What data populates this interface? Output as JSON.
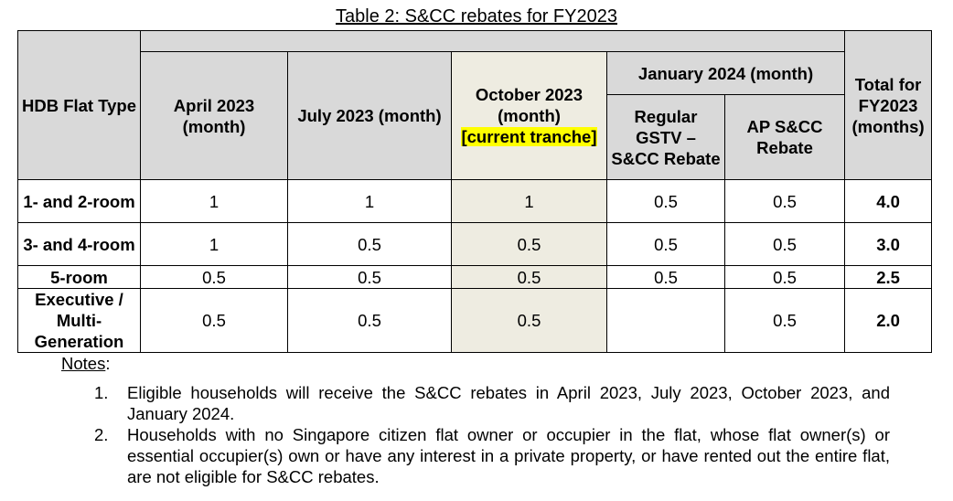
{
  "title": "Table 2: S&CC rebates for FY2023",
  "headers": {
    "flat_type": "HDB Flat Type",
    "april": "April 2023 (month)",
    "july": "July 2023 (month)",
    "october_line1": "October 2023 (month)",
    "october_highlight": "[current tranche]",
    "january_group": "January 2024 (month)",
    "january_regular": "Regular GSTV – S&CC Rebate",
    "january_ap": "AP S&CC Rebate",
    "total": "Total for FY2023 (months)"
  },
  "rows": [
    {
      "flat_type": "1- and 2-room",
      "april": "1",
      "july": "1",
      "october": "1",
      "jan_regular": "0.5",
      "jan_ap": "0.5",
      "total": "4.0"
    },
    {
      "flat_type": "3- and 4-room",
      "april": "1",
      "july": "0.5",
      "october": "0.5",
      "jan_regular": "0.5",
      "jan_ap": "0.5",
      "total": "3.0"
    },
    {
      "flat_type": "5-room",
      "april": "0.5",
      "july": "0.5",
      "october": "0.5",
      "jan_regular": "0.5",
      "jan_ap": "0.5",
      "total": "2.5"
    },
    {
      "flat_type": "Executive / Multi-Generation",
      "april": "0.5",
      "july": "0.5",
      "october": "0.5",
      "jan_regular": "",
      "jan_ap": "0.5",
      "total": "2.0"
    }
  ],
  "notes": {
    "heading": "Notes",
    "colon": ":",
    "items": [
      {
        "num": "1.",
        "text": "Eligible households will receive the S&CC rebates in April 2023, July 2023, October 2023, and January 2024."
      },
      {
        "num": "2.",
        "text": "Households with no Singapore citizen flat owner or occupier in the flat, whose flat owner(s) or essential occupier(s) own or have any interest in a private property, or have rented out the entire flat, are not eligible for S&CC rebates."
      }
    ]
  }
}
